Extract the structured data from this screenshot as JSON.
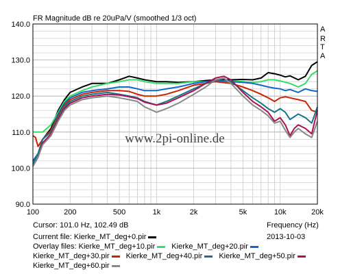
{
  "chart_data": {
    "type": "line",
    "title": "FR Magnitude dB re 20uPa/V (smoothed 1/3 oct)",
    "xlabel": "Frequency (Hz)",
    "ylabel": "",
    "xscale": "log",
    "xlim": [
      100,
      20000
    ],
    "ylim": [
      90,
      140
    ],
    "xtick_labels": [
      "100",
      "200",
      "500",
      "1k",
      "2k",
      "5k",
      "10k",
      "20k"
    ],
    "xtick_values": [
      100,
      200,
      500,
      1000,
      2000,
      5000,
      10000,
      20000
    ],
    "ytick_labels": [
      "90.0",
      "100.0",
      "110.0",
      "120.0",
      "130.0",
      "140.0"
    ],
    "ytick_values": [
      90,
      100,
      110,
      120,
      130,
      140
    ],
    "grid": true,
    "watermark": "www.2pi-online.de",
    "brand_letters": [
      "A",
      "R",
      "T",
      "A"
    ],
    "series": [
      {
        "name": "Kierke_MT_deg+0.pir",
        "color": "#000000",
        "points": [
          [
            100,
            102
          ],
          [
            110,
            104
          ],
          [
            120,
            108
          ],
          [
            140,
            111
          ],
          [
            160,
            116
          ],
          [
            180,
            119
          ],
          [
            200,
            121
          ],
          [
            250,
            122.5
          ],
          [
            300,
            123.5
          ],
          [
            400,
            123.5
          ],
          [
            500,
            124.5
          ],
          [
            600,
            125.5
          ],
          [
            700,
            125
          ],
          [
            800,
            124.5
          ],
          [
            1000,
            124
          ],
          [
            1200,
            124
          ],
          [
            1500,
            123.8
          ],
          [
            2000,
            124
          ],
          [
            2500,
            124.3
          ],
          [
            3000,
            124.5
          ],
          [
            4000,
            124.5
          ],
          [
            5000,
            124.6
          ],
          [
            6000,
            124.5
          ],
          [
            7000,
            125
          ],
          [
            8000,
            126.5
          ],
          [
            9000,
            126.2
          ],
          [
            10000,
            125.8
          ],
          [
            11000,
            125.3
          ],
          [
            12000,
            125.6
          ],
          [
            14000,
            124.5
          ],
          [
            16000,
            125.5
          ],
          [
            18000,
            128.5
          ],
          [
            20000,
            129.5
          ]
        ]
      },
      {
        "name": "Kierke_MT_deg+10.pir",
        "color": "#33dd66",
        "points": [
          [
            100,
            110
          ],
          [
            110,
            110
          ],
          [
            120,
            110
          ],
          [
            140,
            112
          ],
          [
            160,
            115.5
          ],
          [
            180,
            118.5
          ],
          [
            200,
            120
          ],
          [
            250,
            121.5
          ],
          [
            300,
            122.5
          ],
          [
            400,
            123.5
          ],
          [
            500,
            124
          ],
          [
            600,
            124.5
          ],
          [
            700,
            124.5
          ],
          [
            800,
            124
          ],
          [
            1000,
            123.5
          ],
          [
            1200,
            123.5
          ],
          [
            1500,
            123.5
          ],
          [
            2000,
            124
          ],
          [
            2500,
            124
          ],
          [
            3000,
            124.2
          ],
          [
            4000,
            124.2
          ],
          [
            5000,
            124
          ],
          [
            6000,
            123.8
          ],
          [
            7000,
            124
          ],
          [
            8000,
            124.5
          ],
          [
            9000,
            124.5
          ],
          [
            10000,
            124.2
          ],
          [
            12000,
            123.5
          ],
          [
            14000,
            122.5
          ],
          [
            16000,
            123.5
          ],
          [
            18000,
            126
          ],
          [
            20000,
            127
          ]
        ]
      },
      {
        "name": "Kierke_MT_deg+20.pir",
        "color": "#1166cc",
        "points": [
          [
            100,
            102
          ],
          [
            110,
            104
          ],
          [
            120,
            108
          ],
          [
            140,
            110.5
          ],
          [
            160,
            115
          ],
          [
            180,
            118
          ],
          [
            200,
            119.5
          ],
          [
            250,
            121
          ],
          [
            300,
            121.5
          ],
          [
            400,
            122
          ],
          [
            500,
            122.5
          ],
          [
            600,
            122.5
          ],
          [
            700,
            122
          ],
          [
            800,
            121.5
          ],
          [
            1000,
            121.5
          ],
          [
            1200,
            122
          ],
          [
            1500,
            122.5
          ],
          [
            2000,
            123.5
          ],
          [
            2500,
            124
          ],
          [
            3000,
            124.3
          ],
          [
            4000,
            124
          ],
          [
            5000,
            123.8
          ],
          [
            6000,
            123.5
          ],
          [
            7000,
            123
          ],
          [
            8000,
            122.5
          ],
          [
            9000,
            122.2
          ],
          [
            10000,
            122
          ],
          [
            11000,
            121.5
          ],
          [
            12000,
            121.8
          ],
          [
            14000,
            121
          ],
          [
            16000,
            122
          ],
          [
            18000,
            121.5
          ],
          [
            20000,
            121.3
          ]
        ]
      },
      {
        "name": "Kierke_MT_deg+30.pir",
        "color": "#cc2200",
        "points": [
          [
            100,
            109
          ],
          [
            105,
            108.5
          ],
          [
            110,
            106
          ],
          [
            120,
            108
          ],
          [
            140,
            110.5
          ],
          [
            160,
            114.5
          ],
          [
            180,
            117.5
          ],
          [
            200,
            119
          ],
          [
            250,
            120.5
          ],
          [
            300,
            121
          ],
          [
            400,
            121.5
          ],
          [
            500,
            121.5
          ],
          [
            600,
            121.3
          ],
          [
            700,
            120.5
          ],
          [
            800,
            120
          ],
          [
            1000,
            120
          ],
          [
            1200,
            120.5
          ],
          [
            1500,
            121.5
          ],
          [
            2000,
            123
          ],
          [
            2500,
            123.5
          ],
          [
            3000,
            124
          ],
          [
            4000,
            123.5
          ],
          [
            5000,
            122.5
          ],
          [
            6000,
            121.5
          ],
          [
            7000,
            120.5
          ],
          [
            8000,
            119.5
          ],
          [
            9000,
            118.5
          ],
          [
            10000,
            119.5
          ],
          [
            11000,
            119.8
          ],
          [
            12000,
            119.5
          ],
          [
            14000,
            119
          ],
          [
            16000,
            118.5
          ],
          [
            18000,
            116
          ],
          [
            20000,
            115.5
          ]
        ]
      },
      {
        "name": "Kierke_MT_deg+40.pir",
        "color": "#117788",
        "points": [
          [
            100,
            101
          ],
          [
            110,
            104
          ],
          [
            120,
            108
          ],
          [
            140,
            110
          ],
          [
            160,
            114
          ],
          [
            180,
            117
          ],
          [
            200,
            118.5
          ],
          [
            250,
            120
          ],
          [
            300,
            120.5
          ],
          [
            400,
            121
          ],
          [
            500,
            120.5
          ],
          [
            600,
            120
          ],
          [
            700,
            119.5
          ],
          [
            800,
            118.5
          ],
          [
            1000,
            117.5
          ],
          [
            1200,
            118.5
          ],
          [
            1500,
            120
          ],
          [
            2000,
            122
          ],
          [
            2500,
            123.5
          ],
          [
            3000,
            124.5
          ],
          [
            3500,
            124.8
          ],
          [
            4000,
            124
          ],
          [
            5000,
            121.5
          ],
          [
            6000,
            119.5
          ],
          [
            7000,
            118
          ],
          [
            8000,
            116.5
          ],
          [
            9000,
            115.5
          ],
          [
            10000,
            116.5
          ],
          [
            11000,
            115.5
          ],
          [
            12000,
            113.5
          ],
          [
            14000,
            115
          ],
          [
            16000,
            114
          ],
          [
            18000,
            112.5
          ],
          [
            20000,
            117
          ]
        ]
      },
      {
        "name": "Kierke_MT_deg+50.pir",
        "color": "#aa1155",
        "points": [
          [
            100,
            100.5
          ],
          [
            110,
            103
          ],
          [
            120,
            107
          ],
          [
            140,
            109.5
          ],
          [
            160,
            113.5
          ],
          [
            180,
            116.5
          ],
          [
            200,
            118
          ],
          [
            250,
            119.5
          ],
          [
            300,
            120
          ],
          [
            400,
            120.5
          ],
          [
            500,
            120.3
          ],
          [
            600,
            119.8
          ],
          [
            700,
            119.3
          ],
          [
            800,
            118.3
          ],
          [
            1000,
            117.5
          ],
          [
            1200,
            118
          ],
          [
            1500,
            119.5
          ],
          [
            2000,
            121.5
          ],
          [
            2500,
            123.5
          ],
          [
            3000,
            125
          ],
          [
            3500,
            125.5
          ],
          [
            4000,
            124.5
          ],
          [
            5000,
            121
          ],
          [
            6000,
            118.5
          ],
          [
            7000,
            117
          ],
          [
            8000,
            115.5
          ],
          [
            9000,
            113
          ],
          [
            10000,
            114
          ],
          [
            11000,
            112
          ],
          [
            12000,
            109
          ],
          [
            13000,
            111
          ],
          [
            14000,
            112
          ],
          [
            16000,
            111
          ],
          [
            18000,
            109.5
          ],
          [
            20000,
            116
          ]
        ]
      },
      {
        "name": "Kierke_MT_deg+60.pir",
        "color": "#888888",
        "points": [
          [
            100,
            100.5
          ],
          [
            110,
            103
          ],
          [
            120,
            106.5
          ],
          [
            140,
            109
          ],
          [
            160,
            113
          ],
          [
            180,
            116
          ],
          [
            200,
            117.5
          ],
          [
            250,
            119
          ],
          [
            300,
            119.5
          ],
          [
            400,
            120
          ],
          [
            500,
            119.5
          ],
          [
            600,
            119
          ],
          [
            700,
            118.5
          ],
          [
            800,
            117
          ],
          [
            1000,
            115.5
          ],
          [
            1200,
            116.5
          ],
          [
            1500,
            118
          ],
          [
            2000,
            120.5
          ],
          [
            2500,
            122.5
          ],
          [
            3000,
            124.5
          ],
          [
            3500,
            125
          ],
          [
            4000,
            123.5
          ],
          [
            5000,
            120
          ],
          [
            6000,
            117.5
          ],
          [
            7000,
            116
          ],
          [
            8000,
            114.5
          ],
          [
            9000,
            112.5
          ],
          [
            10000,
            113
          ],
          [
            11000,
            110.5
          ],
          [
            12000,
            108.5
          ],
          [
            13000,
            110
          ],
          [
            14000,
            111
          ],
          [
            16000,
            109.5
          ],
          [
            18000,
            108.5
          ],
          [
            20000,
            113
          ]
        ]
      }
    ]
  },
  "info": {
    "cursor": "Cursor: 101.0 Hz, 102.49 dB",
    "xlabel": "Frequency (Hz)",
    "current_file_label": "Current file: Kierke_MT_deg+0.pir",
    "current_file_color": "#000000",
    "date": "2013-10-03",
    "overlay_label": "Overlay files:",
    "overlays": [
      {
        "label": "Kierke_MT_deg+10.pir",
        "color": "#33dd66"
      },
      {
        "label": "Kierke_MT_deg+20.pir",
        "color": "#1166cc"
      },
      {
        "label": "Kierke_MT_deg+30.pir",
        "color": "#cc2200"
      },
      {
        "label": "Kierke_MT_deg+40.pir",
        "color": "#117788"
      },
      {
        "label": "Kierke_MT_deg+50.pir",
        "color": "#aa1155"
      },
      {
        "label": "Kierke_MT_deg+60.pir",
        "color": "#888888"
      }
    ]
  }
}
